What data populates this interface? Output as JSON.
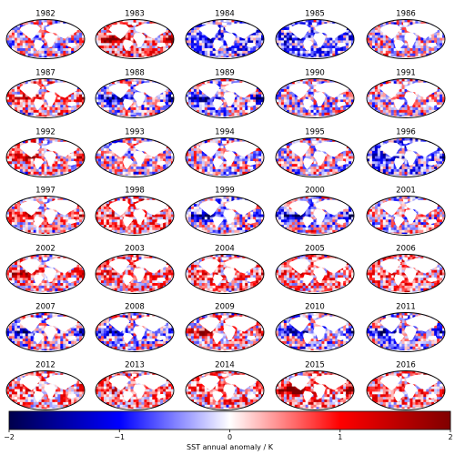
{
  "chart_data": {
    "type": "heatmap",
    "title": "",
    "panels": [
      {
        "year": "1982",
        "pattern": "neutral"
      },
      {
        "year": "1983",
        "pattern": "el-nino-strong"
      },
      {
        "year": "1984",
        "pattern": "cool"
      },
      {
        "year": "1985",
        "pattern": "cool"
      },
      {
        "year": "1986",
        "pattern": "neutral"
      },
      {
        "year": "1987",
        "pattern": "el-nino"
      },
      {
        "year": "1988",
        "pattern": "la-nina"
      },
      {
        "year": "1989",
        "pattern": "la-nina"
      },
      {
        "year": "1990",
        "pattern": "neutral"
      },
      {
        "year": "1991",
        "pattern": "neutral"
      },
      {
        "year": "1992",
        "pattern": "el-nino"
      },
      {
        "year": "1993",
        "pattern": "neutral"
      },
      {
        "year": "1994",
        "pattern": "neutral"
      },
      {
        "year": "1995",
        "pattern": "neutral"
      },
      {
        "year": "1996",
        "pattern": "cool"
      },
      {
        "year": "1997",
        "pattern": "el-nino"
      },
      {
        "year": "1998",
        "pattern": "warm"
      },
      {
        "year": "1999",
        "pattern": "la-nina"
      },
      {
        "year": "2000",
        "pattern": "la-nina"
      },
      {
        "year": "2001",
        "pattern": "neutral"
      },
      {
        "year": "2002",
        "pattern": "el-nino"
      },
      {
        "year": "2003",
        "pattern": "warm"
      },
      {
        "year": "2004",
        "pattern": "warm"
      },
      {
        "year": "2005",
        "pattern": "warm"
      },
      {
        "year": "2006",
        "pattern": "warm"
      },
      {
        "year": "2007",
        "pattern": "la-nina"
      },
      {
        "year": "2008",
        "pattern": "la-nina"
      },
      {
        "year": "2009",
        "pattern": "el-nino"
      },
      {
        "year": "2010",
        "pattern": "la-nina"
      },
      {
        "year": "2011",
        "pattern": "la-nina"
      },
      {
        "year": "2012",
        "pattern": "warm"
      },
      {
        "year": "2013",
        "pattern": "warm"
      },
      {
        "year": "2014",
        "pattern": "warm"
      },
      {
        "year": "2015",
        "pattern": "el-nino-strong"
      },
      {
        "year": "2016",
        "pattern": "warm"
      }
    ],
    "colorbar": {
      "label": "SST annual anomaly / K",
      "min": -2,
      "max": 2,
      "ticks": [
        {
          "value": -2,
          "label": "−2"
        },
        {
          "value": -1,
          "label": "−1"
        },
        {
          "value": 0,
          "label": "0"
        },
        {
          "value": 1,
          "label": "1"
        },
        {
          "value": 2,
          "label": "2"
        }
      ],
      "colormap": "seismic",
      "colors": {
        "low": "#00004c",
        "mid_low": "#0000ff",
        "mid": "#ffffff",
        "mid_high": "#ff0000",
        "high": "#800000"
      }
    },
    "land_color": "#ffffff",
    "outline_color": "#000000"
  }
}
